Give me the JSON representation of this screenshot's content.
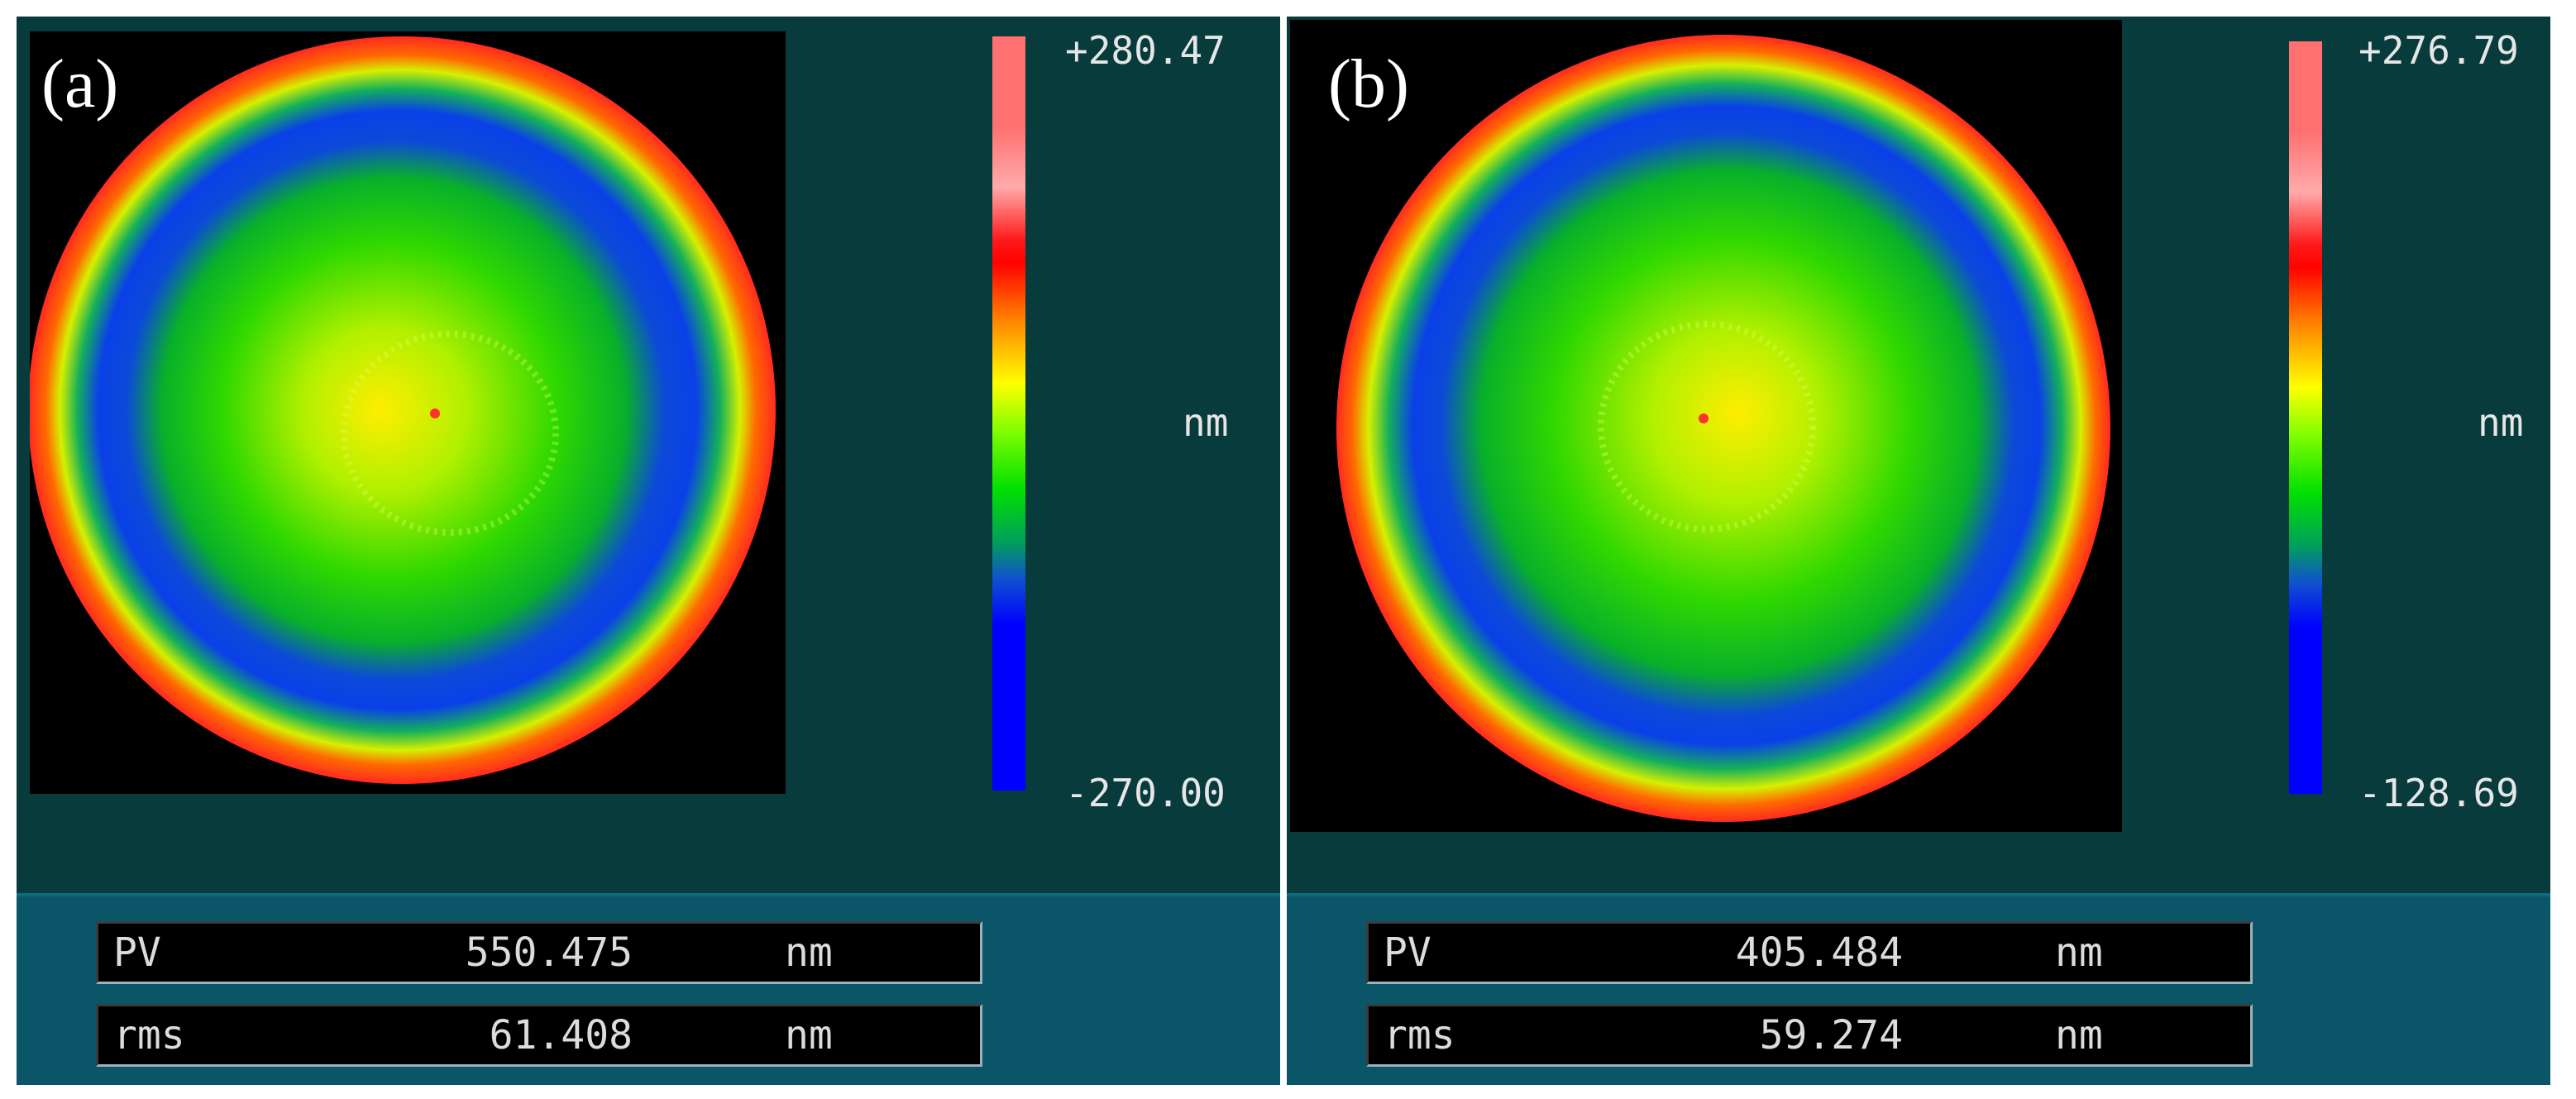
{
  "panels": [
    {
      "label": "(a)",
      "colorbar": {
        "max_label": "+280.47",
        "min_label": "-270.00",
        "unit": "nm"
      },
      "stats": {
        "pv_label": "PV",
        "pv_value": "550.475",
        "pv_unit": "nm",
        "rms_label": "rms",
        "rms_value": "61.408",
        "rms_unit": "nm"
      }
    },
    {
      "label": "(b)",
      "colorbar": {
        "max_label": "+276.79",
        "min_label": "-128.69",
        "unit": "nm"
      },
      "stats": {
        "pv_label": "PV",
        "pv_value": "405.484",
        "pv_unit": "nm",
        "rms_label": "rms",
        "rms_value": "59.274",
        "rms_unit": "nm"
      }
    }
  ],
  "colors": {
    "panel_bg": "#073b3c",
    "stats_strip": "#0b5568",
    "map_background": "#000000"
  }
}
